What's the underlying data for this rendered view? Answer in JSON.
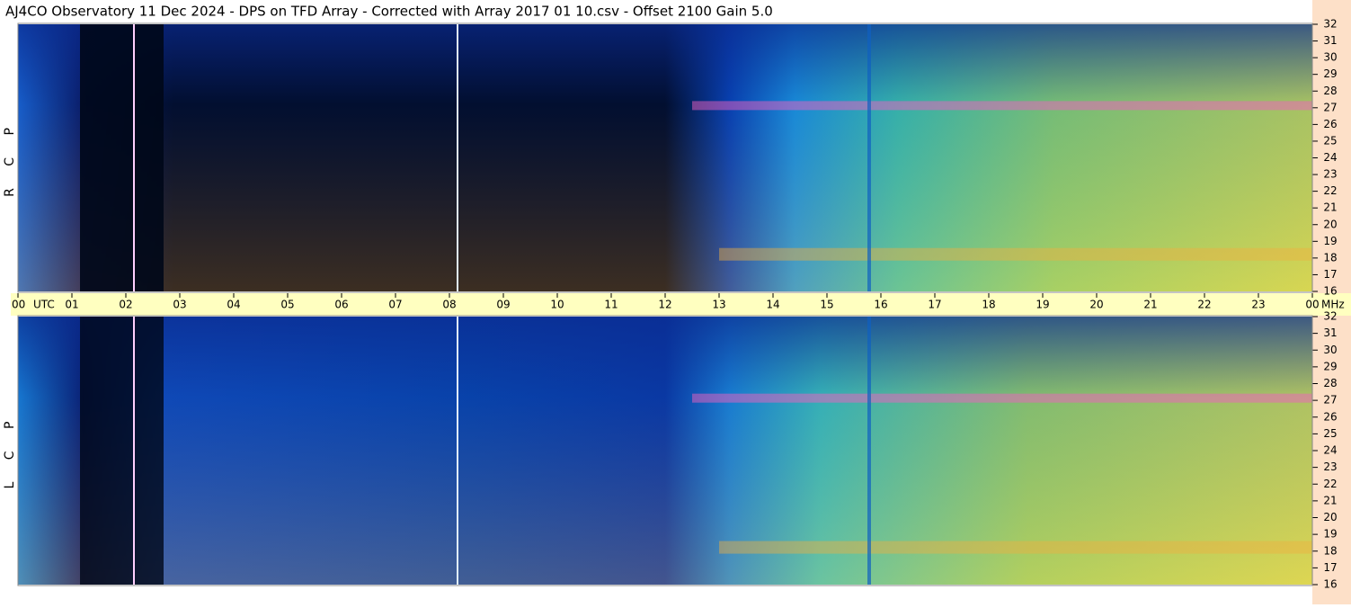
{
  "title": "AJ4CO Observatory  11 Dec 2024  -  DPS on TFD Array  -  Corrected with Array 2017 01 10.csv  -  Offset 2100  Gain 5.0",
  "x_axis": {
    "xlim": [
      0,
      24
    ],
    "unit": "UTC",
    "xticks": [
      {
        "value": 0,
        "label": "00"
      },
      {
        "value": 1,
        "label": "01"
      },
      {
        "value": 2,
        "label": "02"
      },
      {
        "value": 3,
        "label": "03"
      },
      {
        "value": 4,
        "label": "04"
      },
      {
        "value": 5,
        "label": "05"
      },
      {
        "value": 6,
        "label": "06"
      },
      {
        "value": 7,
        "label": "07"
      },
      {
        "value": 8,
        "label": "08"
      },
      {
        "value": 9,
        "label": "09"
      },
      10,
      11,
      12,
      13,
      14,
      15,
      16,
      17,
      18,
      19,
      20,
      21,
      22,
      23,
      {
        "value": 24,
        "label": "00"
      }
    ]
  },
  "y_unit": "MHz",
  "chart_data": [
    {
      "type": "spectrogram",
      "label": "R C P",
      "ylim": [
        16,
        32
      ],
      "yticks": [
        16,
        17,
        18,
        19,
        20,
        21,
        22,
        23,
        24,
        25,
        26,
        27,
        28,
        29,
        30,
        31,
        32
      ]
    },
    {
      "type": "spectrogram",
      "label": "L C P",
      "ylim": [
        16,
        32
      ],
      "yticks": [
        16,
        17,
        18,
        19,
        20,
        21,
        22,
        23,
        24,
        25,
        26,
        27,
        28,
        29,
        30,
        31,
        32
      ]
    }
  ]
}
